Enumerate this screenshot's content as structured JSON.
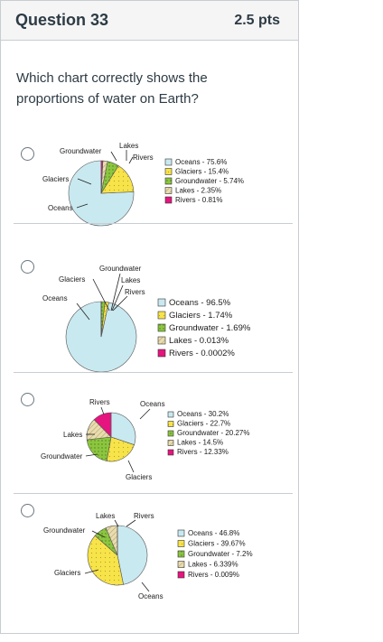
{
  "question": {
    "title": "Question 33",
    "points": "2.5 pts",
    "text": "Which chart correctly shows the proportions of water on Earth?"
  },
  "colors": {
    "Oceans": "#c9e9f0",
    "Glaciers": "#f7e34a",
    "Groundwater": "#8cc63f",
    "Lakes": "#e9dcae",
    "Rivers": "#e6147e"
  },
  "answers": [
    {
      "selected": false,
      "chart_data": {
        "type": "pie",
        "categories": [
          "Oceans",
          "Glaciers",
          "Groundwater",
          "Lakes",
          "Rivers"
        ],
        "values": [
          75.6,
          15.4,
          5.74,
          2.35,
          0.81
        ],
        "legend": [
          "Oceans - 75.6%",
          "Glaciers - 15.4%",
          "Groundwater - 5.74%",
          "Lakes - 2.35%",
          "Rivers - 0.81%"
        ],
        "slice_labels": [
          "Oceans",
          "Glaciers",
          "Groundwater",
          "Lakes",
          "Rivers"
        ],
        "legend_placement": "right"
      }
    },
    {
      "selected": false,
      "chart_data": {
        "type": "pie",
        "categories": [
          "Oceans",
          "Glaciers",
          "Groundwater",
          "Lakes",
          "Rivers"
        ],
        "values": [
          96.5,
          1.74,
          1.69,
          0.013,
          0.0002
        ],
        "legend": [
          "Oceans - 96.5%",
          "Glaciers - 1.74%",
          "Groundwater - 1.69%",
          "Lakes - 0.013%",
          "Rivers - 0.0002%"
        ],
        "slice_labels": [
          "Oceans",
          "Glaciers",
          "Groundwater",
          "Lakes",
          "Rivers"
        ],
        "legend_placement": "right"
      }
    },
    {
      "selected": false,
      "chart_data": {
        "type": "pie",
        "categories": [
          "Oceans",
          "Glaciers",
          "Groundwater",
          "Lakes",
          "Rivers"
        ],
        "values": [
          30.2,
          22.7,
          20.27,
          14.5,
          12.33
        ],
        "legend": [
          "Oceans - 30.2%",
          "Glaciers - 22.7%",
          "Groundwater - 20.27%",
          "Lakes - 14.5%",
          "Rivers - 12.33%"
        ],
        "slice_labels": [
          "Oceans",
          "Glaciers",
          "Groundwater",
          "Lakes",
          "Rivers"
        ],
        "legend_placement": "right"
      }
    },
    {
      "selected": false,
      "chart_data": {
        "type": "pie",
        "categories": [
          "Oceans",
          "Glaciers",
          "Groundwater",
          "Lakes",
          "Rivers"
        ],
        "values": [
          46.8,
          39.67,
          7.2,
          6.339,
          0.009
        ],
        "legend": [
          "Oceans - 46.8%",
          "Glaciers - 39.67%",
          "Groundwater - 7.2%",
          "Lakes - 6.339%",
          "Rivers - 0.009%"
        ],
        "slice_labels": [
          "Oceans",
          "Glaciers",
          "Groundwater",
          "Lakes",
          "Rivers"
        ],
        "legend_placement": "right"
      }
    }
  ]
}
